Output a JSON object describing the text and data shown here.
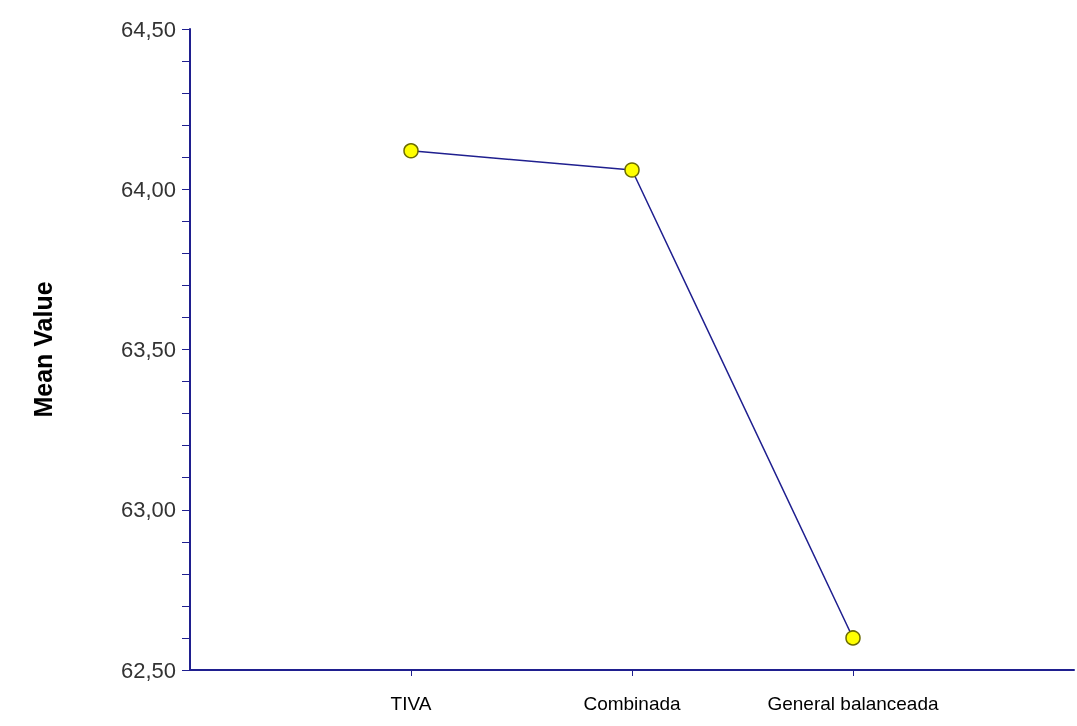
{
  "chart_data": {
    "type": "line",
    "ylabel": "Mean Value",
    "categories": [
      "TIVA",
      "Combinada",
      "General balanceada"
    ],
    "series": [
      {
        "color": "#1f1f8f",
        "values": [
          64.12,
          64.06,
          62.6
        ]
      }
    ],
    "ylim": [
      62.5,
      64.5
    ],
    "yticks": [
      {
        "value": 62.5,
        "label": "62,50"
      },
      {
        "value": 62.6,
        "label": null
      },
      {
        "value": 62.7,
        "label": null
      },
      {
        "value": 62.8,
        "label": null
      },
      {
        "value": 62.9,
        "label": null
      },
      {
        "value": 63,
        "label": "63,00"
      },
      {
        "value": 63.1,
        "label": null
      },
      {
        "value": 63.2,
        "label": null
      },
      {
        "value": 63.3,
        "label": null
      },
      {
        "value": 63.4,
        "label": null
      },
      {
        "value": 63.5,
        "label": "63,50"
      },
      {
        "value": 63.6,
        "label": null
      },
      {
        "value": 63.7,
        "label": null
      },
      {
        "value": 63.8,
        "label": null
      },
      {
        "value": 63.9,
        "label": null
      },
      {
        "value": 64,
        "label": "64,00"
      },
      {
        "value": 64.1,
        "label": null
      },
      {
        "value": 64.2,
        "label": null
      },
      {
        "value": 64.3,
        "label": null
      },
      {
        "value": 64.4,
        "label": null
      },
      {
        "value": 64.5,
        "label": "64,50"
      }
    ],
    "grid": false,
    "marker": "circle",
    "line_style": "solid"
  }
}
